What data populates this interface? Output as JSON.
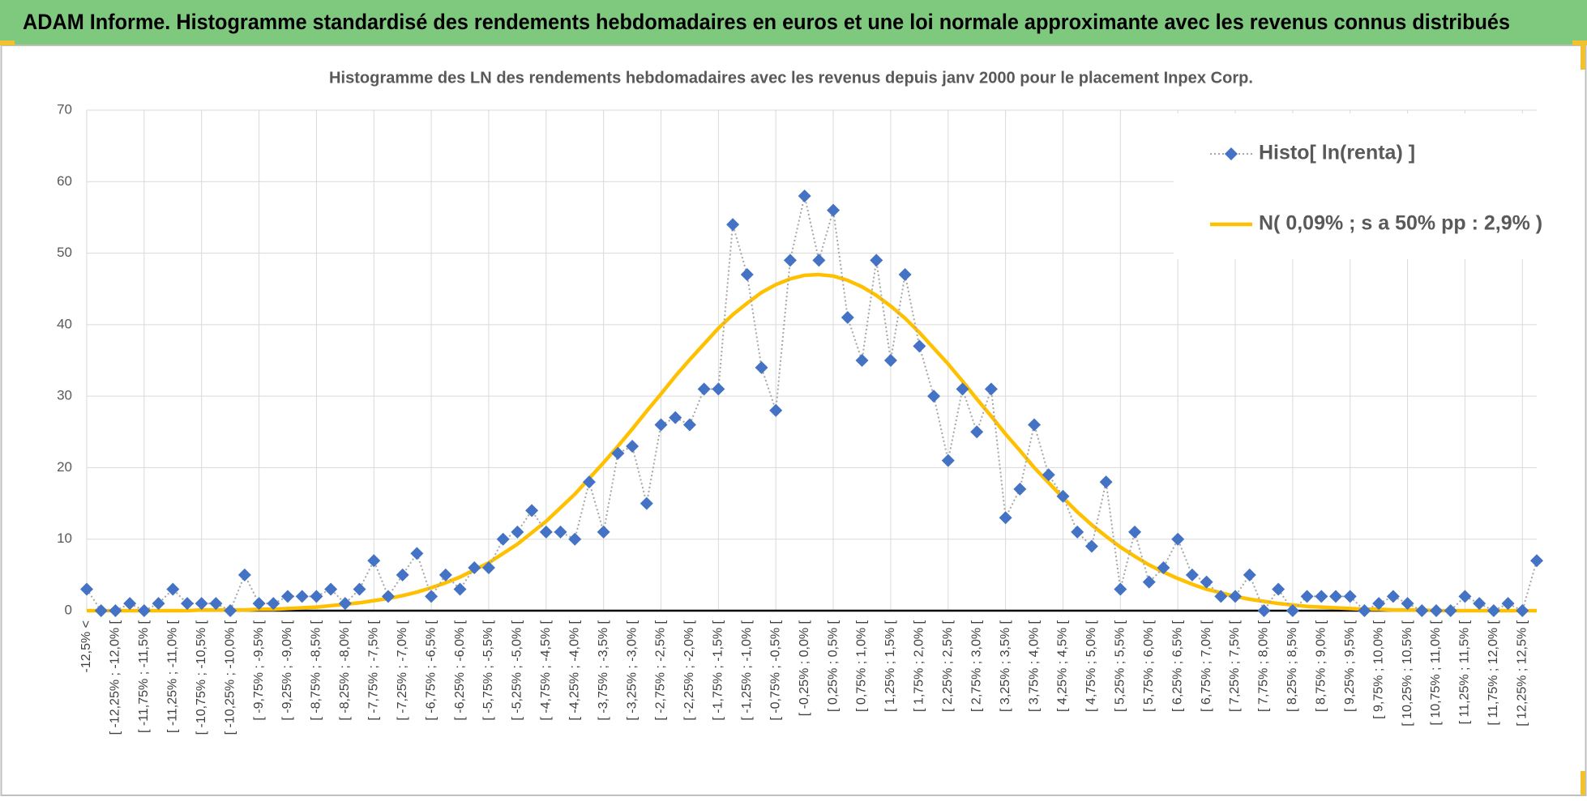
{
  "header": {
    "title": "ADAM Informe. Histogramme standardisé des rendements hebdomadaires en euros et une loi normale approximante avec les revenus connus distribués"
  },
  "chart_data": {
    "type": "line",
    "title": "Histogramme  des LN des rendements hebdomadaires avec les revenus depuis janv 2000 pour le placement Inpex Corp.",
    "categories": [
      "-12,5% <",
      null,
      "[ -12,25% ; -12,0% [",
      null,
      "[ -11,75% ; -11,5% [",
      null,
      "[ -11,25% ; -11,0% [",
      null,
      "[ -10,75% ; -10,5% [",
      null,
      "[ -10,25% ; -10,0% [",
      null,
      "[ -9,75% ; -9,5% [",
      null,
      "[ -9,25% ; -9,0% [",
      null,
      "[ -8,75% ; -8,5% [",
      null,
      "[ -8,25% ; -8,0% [",
      null,
      "[ -7,75% ; -7,5% [",
      null,
      "[ -7,25% ; -7,0% [",
      null,
      "[ -6,75% ; -6,5% [",
      null,
      "[ -6,25% ; -6,0% [",
      null,
      "[ -5,75% ; -5,5% [",
      null,
      "[ -5,25% ; -5,0% [",
      null,
      "[ -4,75% ; -4,5% [",
      null,
      "[ -4,25% ; -4,0% [",
      null,
      "[ -3,75% ; -3,5% [",
      null,
      "[ -3,25% ; -3,0% [",
      null,
      "[ -2,75% ; -2,5% [",
      null,
      "[ -2,25% ; -2,0% [",
      null,
      "[ -1,75% ; -1,5% [",
      null,
      "[ -1,25% ; -1,0% [",
      null,
      "[ -0,75% ; -0,5% [",
      null,
      "[ -0,25% ; 0,0% [",
      null,
      "[ 0,25% ; 0,5% [",
      null,
      "[ 0,75% ; 1,0% [",
      null,
      "[ 1,25% ; 1,5% [",
      null,
      "[ 1,75% ; 2,0% [",
      null,
      "[ 2,25% ; 2,5% [",
      null,
      "[ 2,75% ; 3,0% [",
      null,
      "[ 3,25% ; 3,5% [",
      null,
      "[ 3,75% ; 4,0% [",
      null,
      "[ 4,25% ; 4,5% [",
      null,
      "[ 4,75% ; 5,0% [",
      null,
      "[ 5,25% ; 5,5% [",
      null,
      "[ 5,75% ; 6,0% [",
      null,
      "[ 6,25% ; 6,5% [",
      null,
      "[ 6,75% ; 7,0% [",
      null,
      "[ 7,25% ; 7,5% [",
      null,
      "[ 7,75% ; 8,0% [",
      null,
      "[ 8,25% ; 8,5% [",
      null,
      "[ 8,75% ; 9,0% [",
      null,
      "[ 9,25% ; 9,5% [",
      null,
      "[ 9,75% ; 10,0% [",
      null,
      "[ 10,25% ; 10,5% [",
      null,
      "[ 10,75% ; 11,0% [",
      null,
      "[ 11,25% ; 11,5% [",
      null,
      "[ 11,75% ; 12,0% [",
      null,
      "[ 12,25% ; 12,5% [",
      null
    ],
    "series": [
      {
        "name": "Histo[ ln(renta) ]",
        "color": "#4472c4",
        "style": "markers",
        "values": [
          3,
          0,
          0,
          1,
          0,
          1,
          3,
          1,
          1,
          1,
          0,
          5,
          1,
          1,
          2,
          2,
          2,
          3,
          1,
          3,
          7,
          2,
          5,
          8,
          2,
          5,
          3,
          6,
          6,
          10,
          11,
          14,
          11,
          11,
          10,
          18,
          11,
          22,
          23,
          15,
          26,
          27,
          26,
          31,
          31,
          54,
          47,
          34,
          28,
          49,
          58,
          49,
          56,
          41,
          35,
          49,
          35,
          47,
          37,
          30,
          21,
          31,
          25,
          31,
          13,
          17,
          26,
          19,
          16,
          11,
          9,
          18,
          3,
          11,
          4,
          6,
          10,
          5,
          4,
          2,
          2,
          5,
          0,
          3,
          0,
          2,
          2,
          2,
          2,
          0,
          1,
          2,
          1,
          0,
          0,
          0,
          2,
          1,
          0,
          1,
          0,
          7
        ]
      },
      {
        "name": "N( 0,09% ; s a 50% pp : 2,9% )",
        "color": "#ffc000",
        "style": "line",
        "values": [
          0,
          0,
          0,
          0,
          0,
          0,
          0,
          0,
          0.1,
          0.1,
          0.1,
          0.1,
          0.2,
          0.2,
          0.3,
          0.4,
          0.5,
          0.7,
          0.9,
          1.1,
          1.4,
          1.7,
          2.1,
          2.6,
          3.2,
          3.9,
          4.7,
          5.7,
          6.7,
          8.0,
          9.3,
          10.9,
          12.5,
          14.4,
          16.3,
          18.5,
          20.7,
          23.0,
          25.4,
          27.9,
          30.3,
          32.8,
          35.1,
          37.3,
          39.5,
          41.4,
          43.0,
          44.5,
          45.6,
          46.4,
          46.9,
          47.0,
          46.8,
          46.2,
          45.3,
          44.1,
          42.6,
          40.9,
          38.9,
          36.7,
          34.5,
          32.1,
          29.6,
          27.2,
          24.7,
          22.4,
          20.0,
          17.9,
          15.8,
          13.8,
          12.0,
          10.4,
          8.9,
          7.6,
          6.4,
          5.4,
          4.5,
          3.7,
          3.0,
          2.5,
          2.0,
          1.6,
          1.3,
          1.0,
          0.8,
          0.6,
          0.5,
          0.4,
          0.3,
          0.2,
          0.2,
          0.1,
          0.1,
          0.1,
          0,
          0,
          0,
          0,
          0,
          0,
          0,
          0
        ]
      }
    ],
    "ylim": [
      0,
      70
    ],
    "yticks": [
      0,
      10,
      20,
      30,
      40,
      50,
      60,
      70
    ],
    "grid": true,
    "legend": "top-right"
  }
}
